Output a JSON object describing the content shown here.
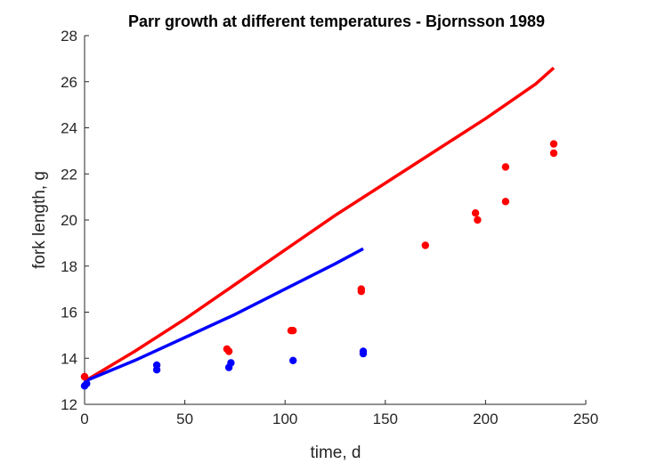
{
  "chart_data": {
    "type": "scatter",
    "title": "Parr growth at different temperatures - Bjornsson 1989",
    "xlabel": "time, d",
    "ylabel": "fork length, g",
    "xlim": [
      0,
      250
    ],
    "ylim": [
      12,
      28
    ],
    "xticks": [
      "0",
      "50",
      "100",
      "150",
      "200",
      "250"
    ],
    "yticks": [
      "12",
      "14",
      "16",
      "18",
      "20",
      "22",
      "24",
      "26",
      "28"
    ],
    "grid": false,
    "box": false,
    "series": [
      {
        "kind": "line",
        "color": "#ff0000",
        "x": [
          0,
          25,
          50,
          75,
          100,
          125,
          150,
          175,
          200,
          225,
          234
        ],
        "y": [
          13.0,
          14.3,
          15.7,
          17.2,
          18.7,
          20.2,
          21.6,
          23.0,
          24.4,
          25.9,
          26.6
        ]
      },
      {
        "kind": "line",
        "color": "#0000ff",
        "x": [
          0,
          25,
          50,
          75,
          100,
          125,
          139
        ],
        "y": [
          13.0,
          13.9,
          14.9,
          15.9,
          17.0,
          18.1,
          18.75
        ]
      },
      {
        "kind": "points",
        "color": "#ff0000",
        "x": [
          0,
          0,
          71,
          72,
          103,
          104,
          138,
          138,
          170,
          195,
          196,
          210,
          210,
          234,
          234
        ],
        "y": [
          13.2,
          13.2,
          14.4,
          14.3,
          15.2,
          15.2,
          17.0,
          16.9,
          18.9,
          20.3,
          20.0,
          22.3,
          20.8,
          23.3,
          22.9
        ]
      },
      {
        "kind": "points",
        "color": "#0000ff",
        "x": [
          0,
          1,
          36,
          36,
          72,
          73,
          104,
          139,
          139
        ],
        "y": [
          12.8,
          12.9,
          13.7,
          13.5,
          13.6,
          13.8,
          13.9,
          14.3,
          14.2
        ]
      }
    ]
  }
}
